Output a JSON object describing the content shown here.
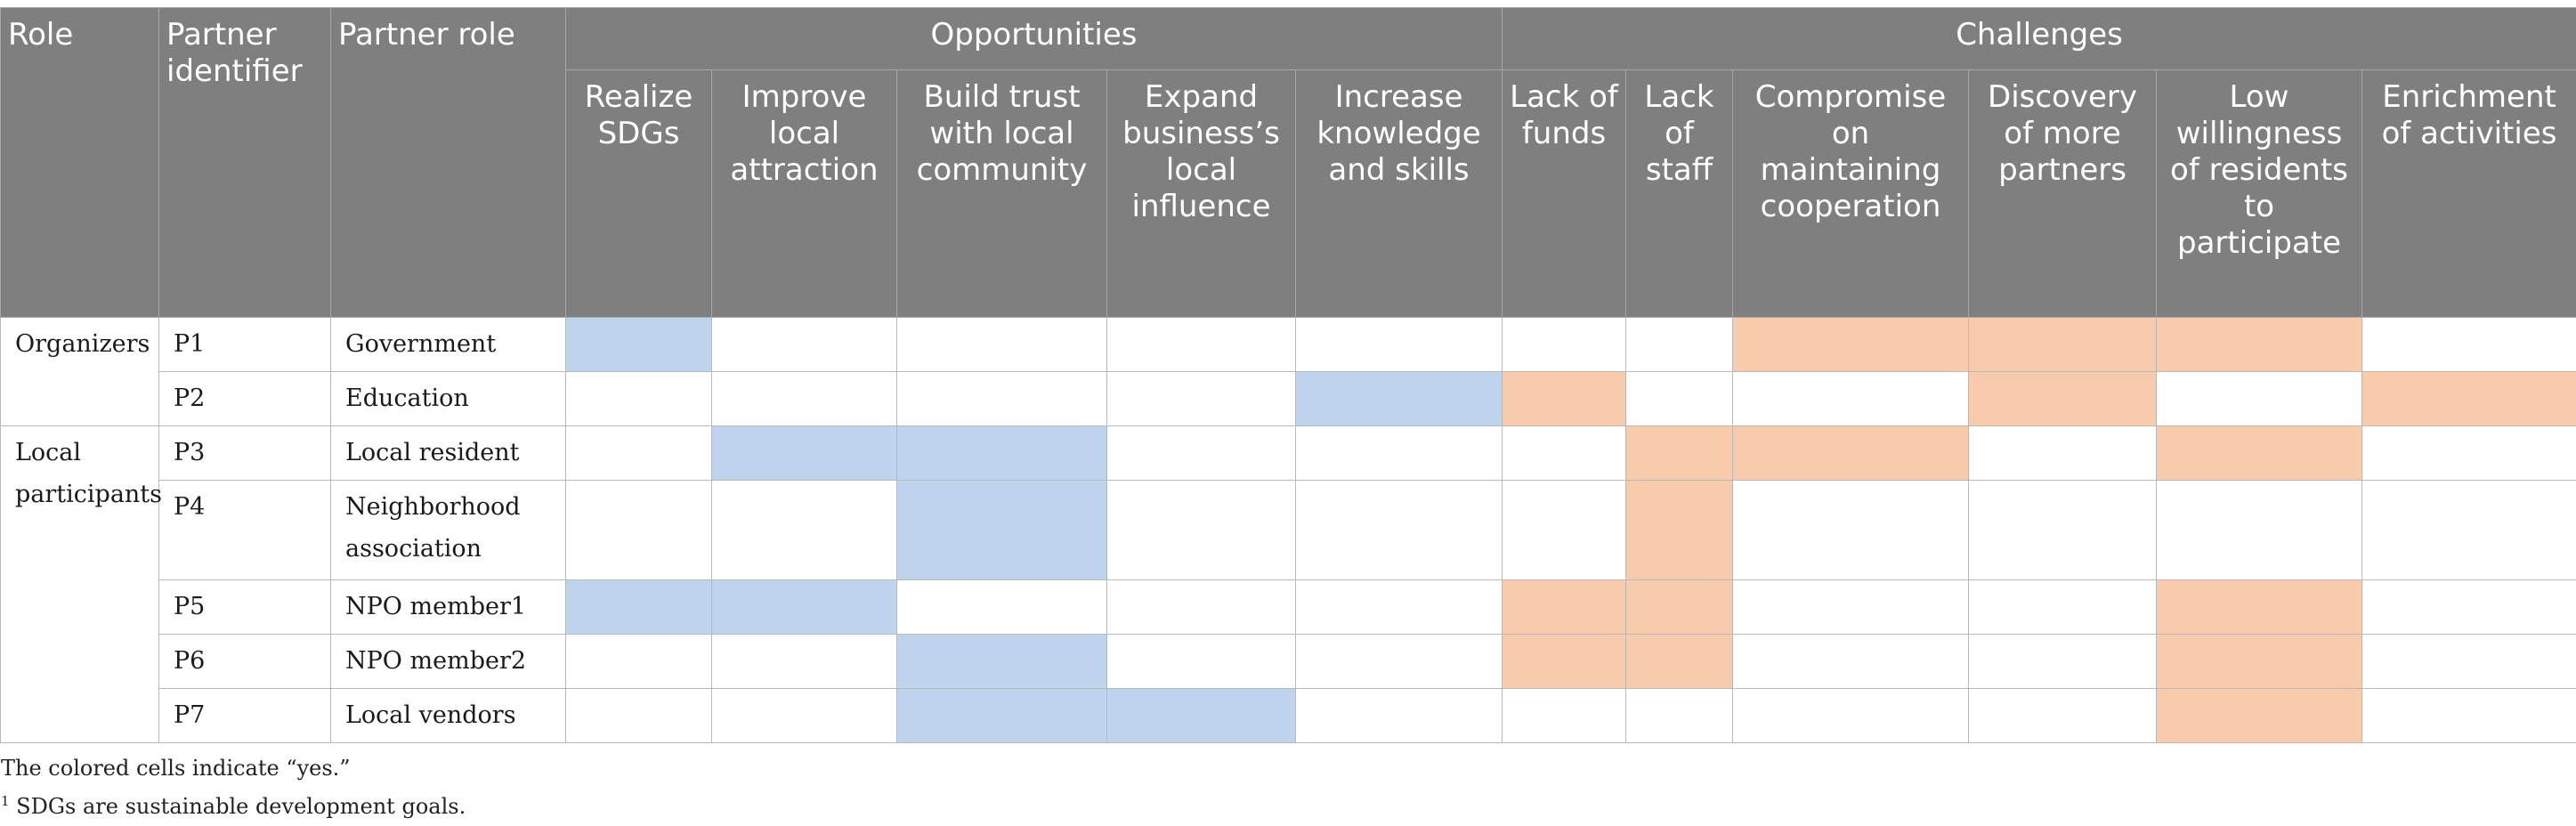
{
  "header": {
    "role": "Role",
    "partner_identifier": "Partner identifier",
    "partner_role": "Partner role",
    "opportunities": "Opportunities",
    "challenges": "Challenges",
    "opportunity_columns": [
      "Realize SDGs",
      "Improve local attraction",
      "Build trust with local community",
      "Expand business’s local influence",
      "Increase knowledge and skills"
    ],
    "challenge_columns": [
      "Lack of funds",
      "Lack of staff",
      "Compromise on maintaining cooperation",
      "Discovery of more partners",
      "Low willingness of residents to participate",
      "Enrichment of activities"
    ]
  },
  "groups": [
    {
      "role": "Organizers"
    },
    {
      "role": "Local participants"
    }
  ],
  "rows": [
    {
      "id": "P1",
      "partner_role": "Government",
      "opportunities": [
        true,
        false,
        false,
        false,
        false
      ],
      "challenges": [
        false,
        false,
        true,
        true,
        true,
        false
      ]
    },
    {
      "id": "P2",
      "partner_role": "Education",
      "opportunities": [
        false,
        false,
        false,
        false,
        true
      ],
      "challenges": [
        true,
        false,
        false,
        true,
        false,
        true
      ]
    },
    {
      "id": "P3",
      "partner_role": "Local resident",
      "opportunities": [
        false,
        true,
        true,
        false,
        false
      ],
      "challenges": [
        false,
        true,
        true,
        false,
        true,
        false
      ]
    },
    {
      "id": "P4",
      "partner_role": "Neighborhood association",
      "opportunities": [
        false,
        false,
        true,
        false,
        false
      ],
      "challenges": [
        false,
        true,
        false,
        false,
        false,
        false
      ]
    },
    {
      "id": "P5",
      "partner_role": "NPO member1",
      "opportunities": [
        true,
        true,
        false,
        false,
        false
      ],
      "challenges": [
        true,
        true,
        false,
        false,
        true,
        false
      ]
    },
    {
      "id": "P6",
      "partner_role": "NPO member2",
      "opportunities": [
        false,
        false,
        true,
        false,
        false
      ],
      "challenges": [
        true,
        true,
        false,
        false,
        true,
        false
      ]
    },
    {
      "id": "P7",
      "partner_role": "Local vendors",
      "opportunities": [
        false,
        false,
        true,
        true,
        false
      ],
      "challenges": [
        false,
        false,
        false,
        false,
        true,
        false
      ]
    }
  ],
  "colors": {
    "header_bg": "#7f7f7f",
    "opportunity_yes": "#bdd4ec",
    "challenge_yes": "#f7cbab"
  },
  "notes": {
    "note1": "The colored cells indicate “yes.”",
    "note2_mark": "1",
    "note2": " SDGs are sustainable development goals."
  }
}
